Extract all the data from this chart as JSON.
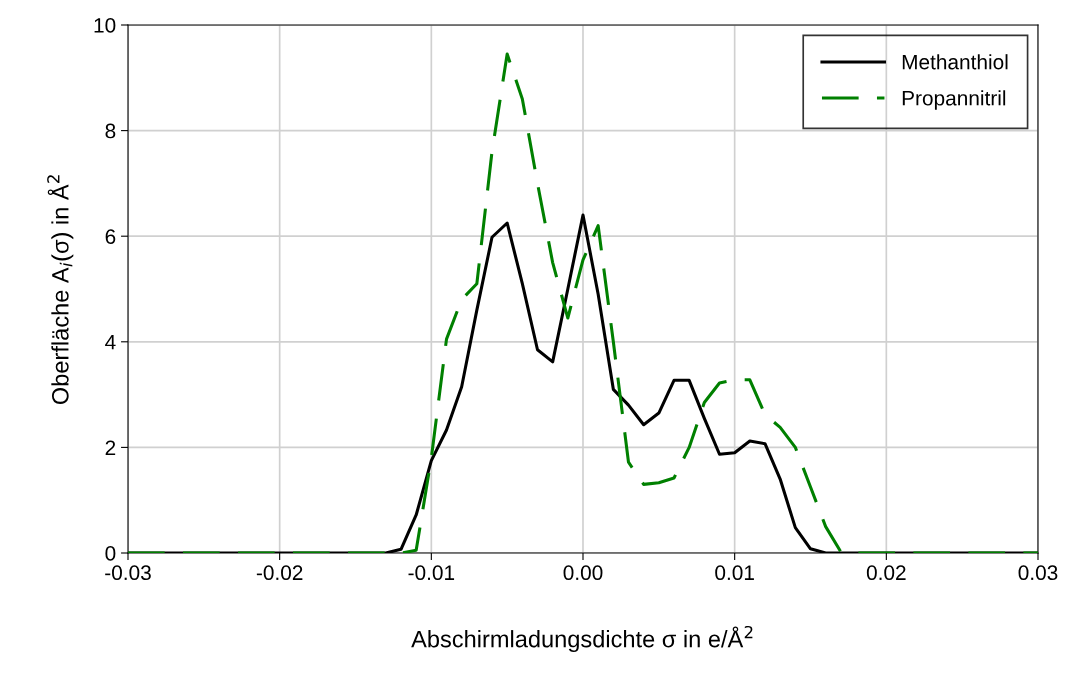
{
  "chart_data": {
    "type": "line",
    "xlabel": "Abschirmladungsdichte σ in e/Å$^{2}$",
    "ylabel": "Oberfläche A$_{i}$(σ) in Å$^{2}$",
    "x": [
      -0.03,
      -0.013,
      -0.012,
      -0.011,
      -0.01,
      -0.009,
      -0.008,
      -0.007,
      -0.006,
      -0.005,
      -0.004,
      -0.003,
      -0.002,
      -0.001,
      0.0,
      0.001,
      0.002,
      0.003,
      0.004,
      0.005,
      0.006,
      0.007,
      0.008,
      0.009,
      0.01,
      0.011,
      0.012,
      0.013,
      0.014,
      0.015,
      0.016,
      0.017,
      0.018,
      0.03
    ],
    "series": [
      {
        "name": "Methanthiol",
        "color": "#000000",
        "line_style": "solid",
        "values": [
          0,
          0,
          0.07,
          0.72,
          1.75,
          2.33,
          3.15,
          4.6,
          5.98,
          6.25,
          5.1,
          3.85,
          3.62,
          5.0,
          6.4,
          4.9,
          3.1,
          2.8,
          2.43,
          2.65,
          3.27,
          3.27,
          2.55,
          1.87,
          1.9,
          2.12,
          2.07,
          1.4,
          0.48,
          0.08,
          0,
          0,
          0,
          0
        ]
      },
      {
        "name": "Propannitril",
        "color": "#008000",
        "line_style": "dashed",
        "values": [
          0,
          0,
          0,
          0.05,
          1.8,
          4.05,
          4.8,
          5.1,
          7.6,
          9.45,
          8.6,
          7.0,
          5.5,
          4.45,
          5.55,
          6.2,
          4.0,
          1.72,
          1.3,
          1.33,
          1.42,
          2.0,
          2.85,
          3.22,
          3.28,
          3.28,
          2.62,
          2.38,
          2.0,
          1.25,
          0.5,
          0.02,
          0,
          0
        ]
      }
    ],
    "xlim": [
      -0.03,
      0.03
    ],
    "xticks": [
      {
        "value": -0.03,
        "label": "-0.03"
      },
      {
        "value": -0.02,
        "label": "-0.02"
      },
      {
        "value": -0.01,
        "label": "-0.01"
      },
      {
        "value": 0.0,
        "label": "0.00"
      },
      {
        "value": 0.01,
        "label": "0.01"
      },
      {
        "value": 0.02,
        "label": "0.02"
      },
      {
        "value": 0.03,
        "label": "0.03"
      }
    ],
    "ylim": [
      0,
      10
    ],
    "yticks": [
      0,
      2,
      4,
      6,
      8,
      10
    ],
    "grid": true,
    "legend": "top right"
  }
}
